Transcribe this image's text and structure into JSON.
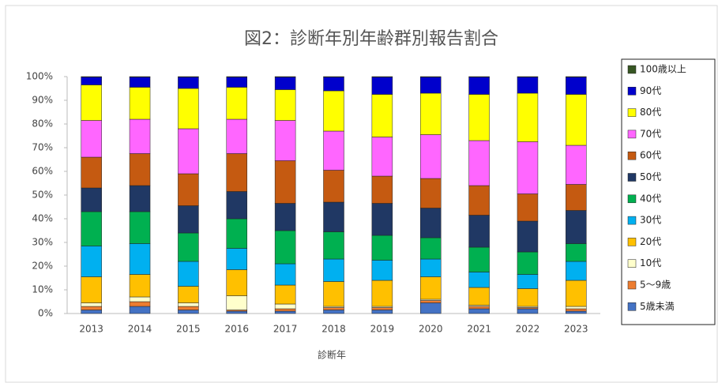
{
  "chart_data": {
    "type": "stacked_bar_percent",
    "title": "図2：診断年別年齢群別報告割合",
    "x_label": "診断年",
    "categories": [
      "2013",
      "2014",
      "2015",
      "2016",
      "2017",
      "2018",
      "2019",
      "2020",
      "2021",
      "2022",
      "2023"
    ],
    "ylim": [
      0,
      100
    ],
    "yticks": [
      {
        "value": 0,
        "label": "0%"
      },
      {
        "value": 10,
        "label": "10%"
      },
      {
        "value": 20,
        "label": "20%"
      },
      {
        "value": 30,
        "label": "30%"
      },
      {
        "value": 40,
        "label": "40%"
      },
      {
        "value": 50,
        "label": "50%"
      },
      {
        "value": 60,
        "label": "60%"
      },
      {
        "value": 70,
        "label": "70%"
      },
      {
        "value": 80,
        "label": "80%"
      },
      {
        "value": 90,
        "label": "90%"
      },
      {
        "value": 100,
        "label": "100%"
      }
    ],
    "legend": "right",
    "series": [
      {
        "name": "5歳未満",
        "color": "#4472c4",
        "values": [
          1.5,
          3,
          1.5,
          1,
          1,
          1.5,
          1.5,
          4.5,
          2,
          2,
          1
        ]
      },
      {
        "name": "5～9歳",
        "color": "#ed7d31",
        "values": [
          1.5,
          2,
          1.5,
          0.5,
          1,
          1,
          1,
          1,
          1,
          0.5,
          1
        ]
      },
      {
        "name": "10代",
        "color": "#ffffcc",
        "values": [
          1.5,
          2,
          1.5,
          6,
          2,
          0.5,
          0.5,
          0.5,
          0.5,
          0.5,
          1
        ]
      },
      {
        "name": "20代",
        "color": "#ffc000",
        "values": [
          11,
          9.5,
          7,
          11,
          8,
          10.5,
          11,
          9.5,
          7.5,
          7.5,
          11
        ]
      },
      {
        "name": "30代",
        "color": "#00b0f0",
        "values": [
          13,
          13,
          10.5,
          9,
          9,
          9.5,
          8.5,
          7.5,
          6.5,
          6,
          8
        ]
      },
      {
        "name": "40代",
        "color": "#00b050",
        "values": [
          14.5,
          13.5,
          12,
          12.5,
          14,
          11.5,
          10.5,
          9,
          10.5,
          9.5,
          7.5
        ]
      },
      {
        "name": "50代",
        "color": "#203864",
        "values": [
          10,
          11,
          11.5,
          11.5,
          11.5,
          12.5,
          13.5,
          12.5,
          13.5,
          13,
          14
        ]
      },
      {
        "name": "60代",
        "color": "#c55a11",
        "values": [
          13,
          13.5,
          13.5,
          16,
          18,
          13.5,
          11.5,
          12.5,
          12.5,
          11.5,
          11
        ]
      },
      {
        "name": "70代",
        "color": "#ff66ff",
        "values": [
          15.5,
          14.5,
          19,
          14.5,
          17,
          16.5,
          16.5,
          18.5,
          19,
          22,
          16.5
        ]
      },
      {
        "name": "80代",
        "color": "#ffff00",
        "values": [
          15,
          13.5,
          17,
          13.5,
          13,
          17,
          18,
          17.5,
          19.5,
          20.5,
          21.5
        ]
      },
      {
        "name": "90代",
        "color": "#0000cc",
        "values": [
          3.3,
          4.3,
          4.8,
          4.3,
          5.3,
          5.8,
          7.3,
          6.8,
          7.3,
          6.8,
          7.3
        ]
      },
      {
        "name": "100歳以上",
        "color": "#375623",
        "values": [
          0.2,
          0.2,
          0.2,
          0.2,
          0.2,
          0.2,
          0.2,
          0.2,
          0.2,
          0.2,
          0.2
        ]
      }
    ]
  }
}
